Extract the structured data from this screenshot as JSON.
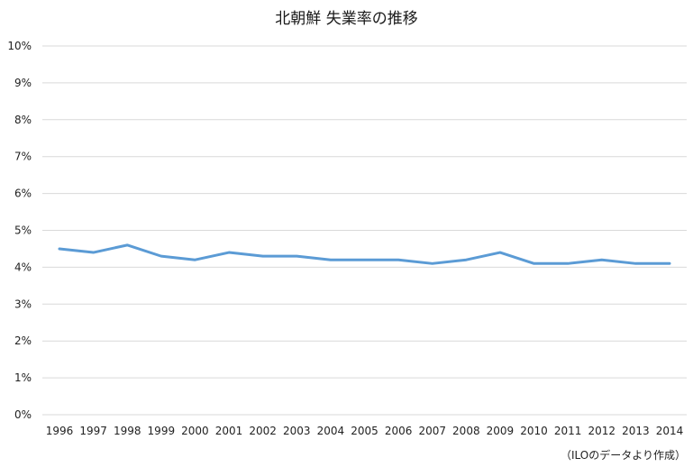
{
  "chart_data": {
    "type": "line",
    "title": "北朝鮮 失業率の推移",
    "xlabel": "",
    "ylabel": "",
    "x": [
      "1996",
      "1997",
      "1998",
      "1999",
      "2000",
      "2001",
      "2002",
      "2003",
      "2004",
      "2005",
      "2006",
      "2007",
      "2008",
      "2009",
      "2010",
      "2011",
      "2012",
      "2013",
      "2014"
    ],
    "series": [
      {
        "values": [
          4.5,
          4.4,
          4.6,
          4.3,
          4.2,
          4.4,
          4.3,
          4.3,
          4.2,
          4.2,
          4.2,
          4.1,
          4.2,
          4.4,
          4.1,
          4.1,
          4.2,
          4.1,
          4.1
        ]
      }
    ],
    "ylim": [
      0,
      10
    ],
    "ytick_labels": [
      "0%",
      "1%",
      "2%",
      "3%",
      "4%",
      "5%",
      "6%",
      "7%",
      "8%",
      "9%",
      "10%"
    ],
    "grid": true,
    "line_color": "#5b9bd5",
    "grid_color": "#d9d9d9"
  },
  "source_note": "（ILOのデータより作成）"
}
